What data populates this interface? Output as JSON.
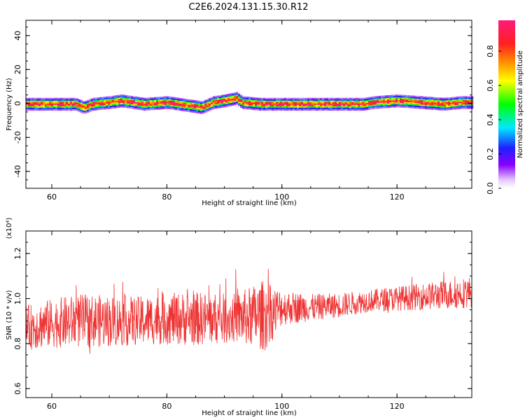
{
  "figure_title": "C2E6.2024.131.15.30.R12",
  "colors": {
    "snr_line": "#ee3333",
    "frame": "#000000",
    "background": "#ffffff"
  },
  "chart_data": [
    {
      "type": "heatmap",
      "name": "spectrogram",
      "xlabel": "Height of straight line (km)",
      "ylabel": "Frequency (Hz)",
      "xlim": [
        55.5,
        133
      ],
      "ylim": [
        -50,
        49
      ],
      "x_ticks": [
        60,
        80,
        100,
        120
      ],
      "y_ticks": [
        40,
        20,
        0,
        -20,
        -40
      ],
      "y_tick_labels": [
        "40",
        "20",
        "0",
        "-20",
        "-40"
      ],
      "colorbar": {
        "label": "Normalized spectral amplitude",
        "range": [
          0,
          0.98
        ],
        "ticks": [
          0.0,
          0.2,
          0.4,
          0.6,
          0.8
        ],
        "tick_labels": [
          "0.0",
          "0.2",
          "0.4",
          "0.6",
          "0.8"
        ],
        "colormap": "rainbow (white-violet-blue-cyan-green-yellow-orange-red-magenta)"
      },
      "signal_band": {
        "center_frequency_hz": [
          [
            56,
            0
          ],
          [
            60,
            0
          ],
          [
            64,
            0
          ],
          [
            65.5,
            -2
          ],
          [
            67,
            0
          ],
          [
            70,
            1
          ],
          [
            72,
            2
          ],
          [
            74,
            1
          ],
          [
            76,
            0
          ],
          [
            80,
            1
          ],
          [
            84,
            -1
          ],
          [
            86,
            -2
          ],
          [
            88,
            1
          ],
          [
            90,
            2
          ],
          [
            92,
            3.5
          ],
          [
            93,
            1
          ],
          [
            96,
            0
          ],
          [
            100,
            0
          ],
          [
            104,
            0
          ],
          [
            110,
            0
          ],
          [
            114,
            0
          ],
          [
            116,
            1
          ],
          [
            120,
            2
          ],
          [
            124,
            1
          ],
          [
            128,
            0
          ],
          [
            131,
            1
          ],
          [
            133,
            1
          ]
        ],
        "core_amplitude": 1.0,
        "spread_hz": 5
      }
    },
    {
      "type": "line",
      "name": "snr",
      "xlabel": "Height of straight line (km)",
      "ylabel": "SNR (10 * v/v)",
      "y_multiplier_label": "(x10⁴)",
      "xlim": [
        55.5,
        133
      ],
      "ylim": [
        0.56,
        1.3
      ],
      "x_ticks": [
        60,
        80,
        100,
        120
      ],
      "y_ticks": [
        0.6,
        0.8,
        1.0,
        1.2
      ],
      "y_tick_labels": [
        "0.6",
        "0.8",
        "1.0",
        "1.2"
      ],
      "series": [
        {
          "trend_x": [
            55.5,
            60,
            65,
            70,
            75,
            80,
            85,
            90,
            95,
            98,
            100,
            105,
            110,
            115,
            120,
            125,
            130,
            133
          ],
          "trend_y": [
            0.87,
            0.89,
            0.9,
            0.9,
            0.9,
            0.91,
            0.91,
            0.91,
            0.92,
            0.93,
            0.96,
            0.96,
            0.97,
            0.99,
            1.0,
            1.01,
            1.02,
            1.03
          ],
          "amplitude_x": [
            55.5,
            65,
            75,
            85,
            92,
            97,
            100,
            105,
            115,
            125,
            133
          ],
          "amplitude_y": [
            0.1,
            0.12,
            0.11,
            0.12,
            0.11,
            0.16,
            0.08,
            0.06,
            0.05,
            0.06,
            0.07
          ]
        }
      ]
    }
  ]
}
